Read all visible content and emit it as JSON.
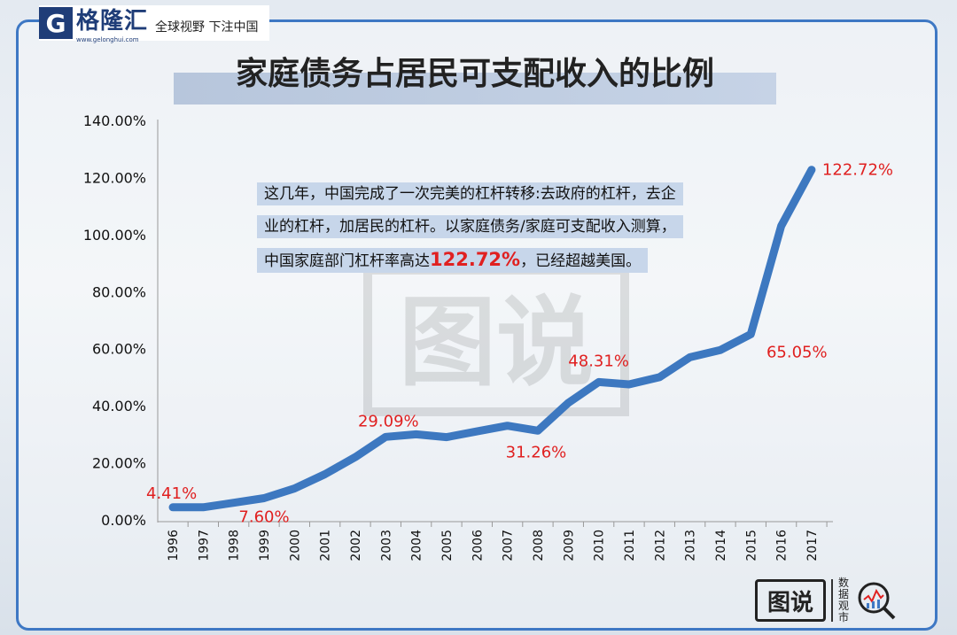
{
  "brand": {
    "logo_letter": "G",
    "name": "格隆汇",
    "url": "www.gelonghui.com",
    "slogan": "全球视野 下注中国"
  },
  "title": "家庭债务占居民可支配收入的比例",
  "note": {
    "line1": "这几年，中国完成了一次完美的杠杆转移:去政府的杠杆，去企",
    "line2": "业的杠杆，加居民的杠杆。以家庭债务/家庭可支配收入测算，",
    "line3_before": "中国家庭部门杠杆率高达",
    "line3_highlight": "122.72%",
    "line3_after": "，已经超越美国。"
  },
  "watermark": {
    "text": "图说"
  },
  "bottom_logo": {
    "mark": "图说",
    "side_text": "数据观市"
  },
  "colors": {
    "line": "#3d78c0",
    "label": "#e02020",
    "accent": "#3e78c4"
  },
  "chart_data": {
    "type": "line",
    "title": "家庭债务占居民可支配收入的比例",
    "xlabel": "",
    "ylabel": "",
    "categories": [
      "1996",
      "1997",
      "1998",
      "1999",
      "2000",
      "2001",
      "2002",
      "2003",
      "2004",
      "2005",
      "2006",
      "2007",
      "2008",
      "2009",
      "2010",
      "2011",
      "2012",
      "2013",
      "2014",
      "2015",
      "2016",
      "2017"
    ],
    "values": [
      4.41,
      4.4,
      6.0,
      7.6,
      11.0,
      16.0,
      22.0,
      29.09,
      30.0,
      29.0,
      31.0,
      33.0,
      31.26,
      41.0,
      48.31,
      47.5,
      50.0,
      57.0,
      59.5,
      65.05,
      103.0,
      122.72
    ],
    "ylim": [
      0,
      140
    ],
    "yticks": [
      "0.00%",
      "20.00%",
      "40.00%",
      "60.00%",
      "80.00%",
      "100.00%",
      "120.00%",
      "140.00%"
    ],
    "grid": false,
    "data_labels": [
      {
        "index": 0,
        "text": "4.41%"
      },
      {
        "index": 3,
        "text": "7.60%"
      },
      {
        "index": 7,
        "text": "29.09%"
      },
      {
        "index": 12,
        "text": "31.26%"
      },
      {
        "index": 14,
        "text": "48.31%"
      },
      {
        "index": 19,
        "text": "65.05%"
      },
      {
        "index": 21,
        "text": "122.72%"
      }
    ]
  }
}
